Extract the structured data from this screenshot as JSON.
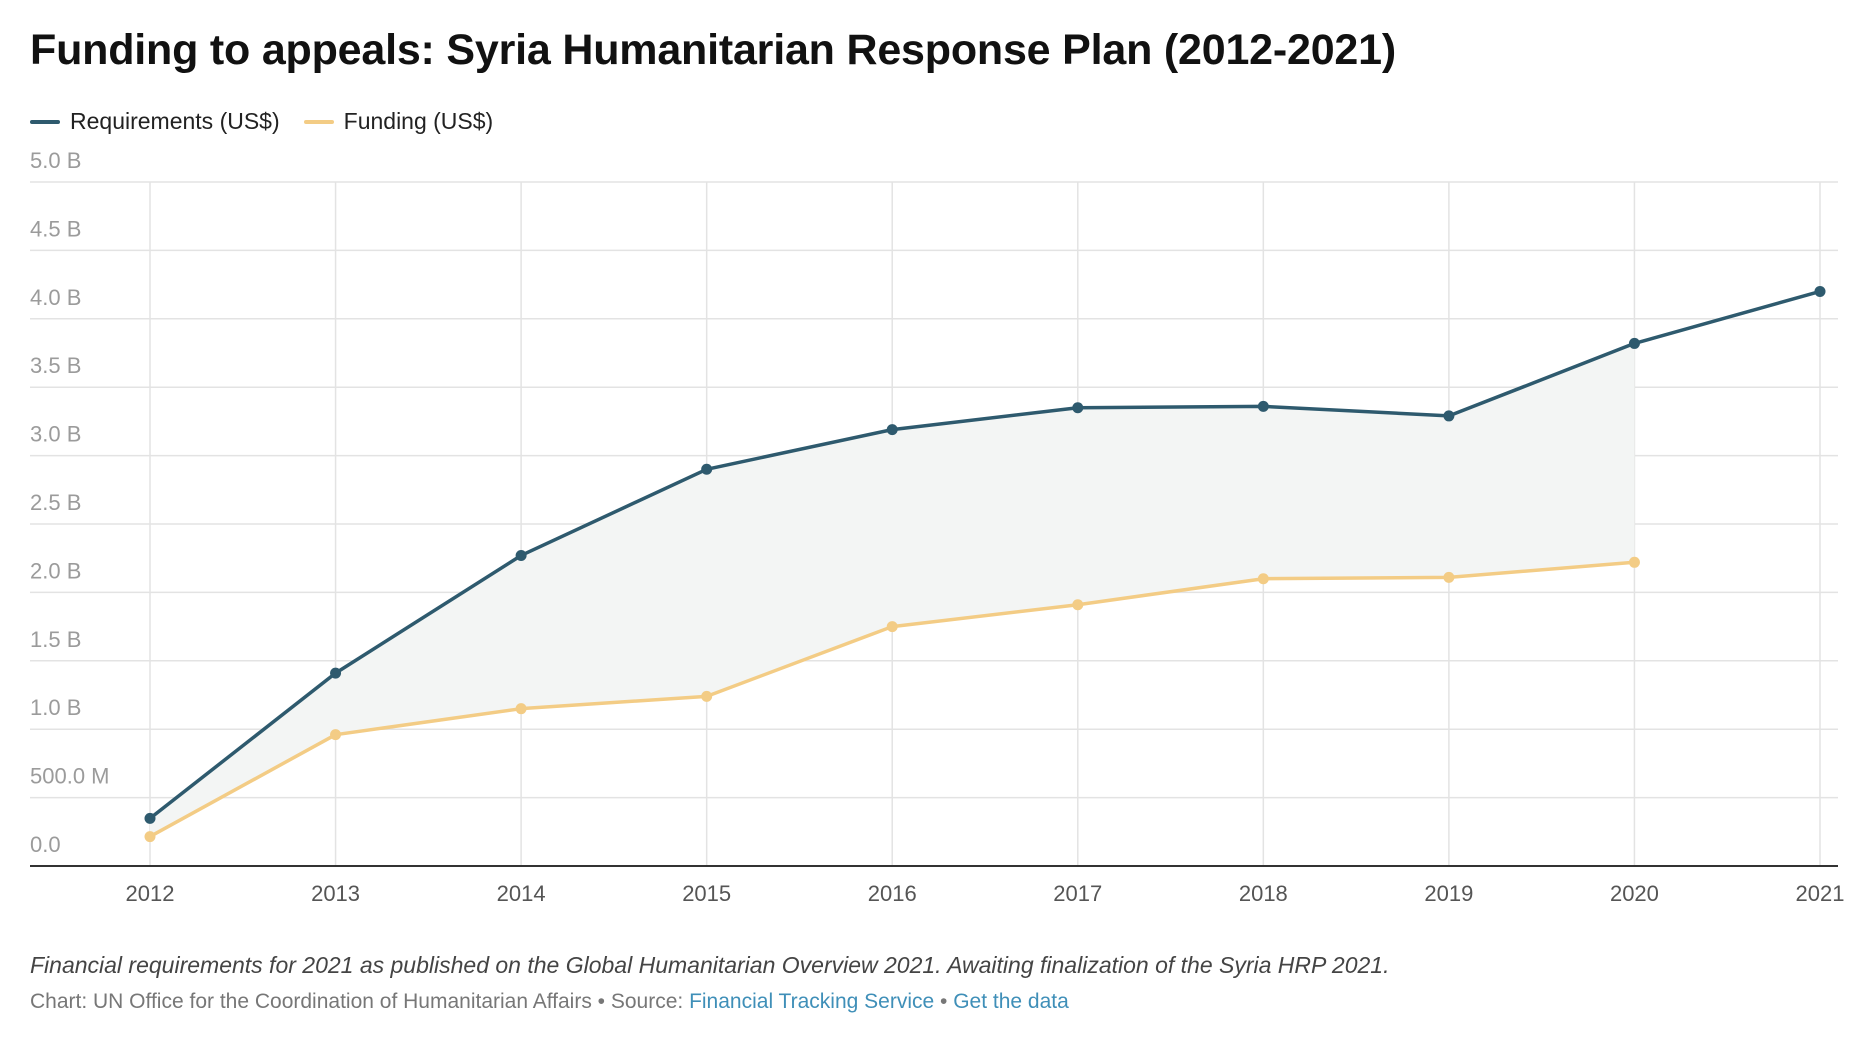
{
  "title": "Funding to appeals: Syria Humanitarian Response Plan (2012-2021)",
  "legend": [
    {
      "label": "Requirements (US$)",
      "color": "#2e5a6e"
    },
    {
      "label": "Funding (US$)",
      "color": "#f3cc85"
    }
  ],
  "notes": "Financial requirements for 2021 as published on the Global Humanitarian Overview 2021. Awaiting finalization of the Syria HRP 2021.",
  "credits": {
    "chart_prefix": "Chart: UN Office for the Coordination of Humanitarian Affairs • Source: ",
    "source_link": "Financial Tracking Service",
    "separator": " • ",
    "data_link": "Get the data"
  },
  "colors": {
    "requirements": "#2e5a6e",
    "funding": "#f3cc85",
    "band_fill": "#f3f5f4",
    "grid": "#e3e3e3",
    "axis": "#333333",
    "tick_text_y": "#9b9b9b",
    "tick_text_x": "#555555"
  },
  "chart_data": {
    "type": "line",
    "x": [
      2012,
      2013,
      2014,
      2015,
      2016,
      2017,
      2018,
      2019,
      2020,
      2021
    ],
    "x_tick_labels": [
      "2012",
      "2013",
      "2014",
      "2015",
      "2016",
      "2017",
      "2018",
      "2019",
      "2020",
      "2021"
    ],
    "y_tick_values": [
      0,
      500000000,
      1000000000,
      1500000000,
      2000000000,
      2500000000,
      3000000000,
      3500000000,
      4000000000,
      4500000000,
      5000000000
    ],
    "y_tick_labels": [
      "0.0",
      "500.0 M",
      "1.0 B",
      "1.5 B",
      "2.0 B",
      "2.5 B",
      "3.0 B",
      "3.5 B",
      "4.0 B",
      "4.5 B",
      "5.0 B"
    ],
    "ylim": [
      0,
      5000000000
    ],
    "grid": true,
    "legend_position": "top-left",
    "series": [
      {
        "name": "Requirements (US$)",
        "color": "#2e5a6e",
        "values": [
          348000000,
          1410000000,
          2270000000,
          2900000000,
          3190000000,
          3350000000,
          3360000000,
          3290000000,
          3820000000,
          4200000000
        ]
      },
      {
        "name": "Funding (US$)",
        "color": "#f3cc85",
        "values": [
          215000000,
          960000000,
          1150000000,
          1240000000,
          1750000000,
          1910000000,
          2100000000,
          2110000000,
          2220000000,
          null
        ]
      }
    ]
  }
}
